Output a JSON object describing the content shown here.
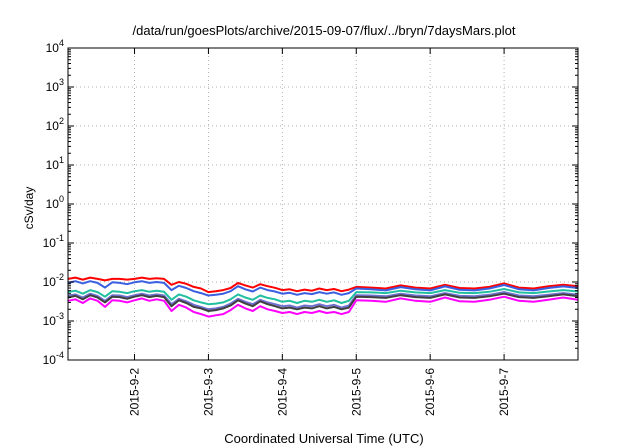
{
  "chart_data": {
    "type": "line",
    "title": "/data/run/goesPlots/archive/2015-09-07/flux/../bryn/7daysMars.plot",
    "xlabel": "Coordinated Universal Time (UTC)",
    "ylabel": "cSv/day",
    "yscale": "log",
    "ylim": [
      0.0001,
      10000
    ],
    "y_ticks": [
      {
        "value": 0.0001,
        "base": "10",
        "exp": "-4"
      },
      {
        "value": 0.001,
        "base": "10",
        "exp": "-3"
      },
      {
        "value": 0.01,
        "base": "10",
        "exp": "-2"
      },
      {
        "value": 0.1,
        "base": "10",
        "exp": "-1"
      },
      {
        "value": 1,
        "base": "10",
        "exp": "0"
      },
      {
        "value": 10,
        "base": "10",
        "exp": "1"
      },
      {
        "value": 100,
        "base": "10",
        "exp": "2"
      },
      {
        "value": 1000,
        "base": "10",
        "exp": "3"
      },
      {
        "value": 10000,
        "base": "10",
        "exp": "4"
      }
    ],
    "xlim": [
      1.1,
      8.0
    ],
    "x_ticks": [
      {
        "label": "2015-9-2",
        "day": 2
      },
      {
        "label": "2015-9-3",
        "day": 3
      },
      {
        "label": "2015-9-4",
        "day": 4
      },
      {
        "label": "2015-9-5",
        "day": 5
      },
      {
        "label": "2015-9-6",
        "day": 6
      },
      {
        "label": "2015-9-7",
        "day": 7
      }
    ],
    "grid": true,
    "x": [
      1.1,
      1.2,
      1.3,
      1.4,
      1.5,
      1.6,
      1.7,
      1.8,
      1.9,
      2.0,
      2.1,
      2.2,
      2.3,
      2.4,
      2.5,
      2.6,
      2.7,
      2.8,
      2.9,
      3.0,
      3.1,
      3.2,
      3.3,
      3.4,
      3.5,
      3.6,
      3.7,
      3.8,
      3.9,
      4.0,
      4.1,
      4.2,
      4.3,
      4.4,
      4.5,
      4.6,
      4.7,
      4.8,
      4.9,
      5.0,
      5.2,
      5.4,
      5.6,
      5.8,
      6.0,
      6.2,
      6.4,
      6.6,
      6.8,
      7.0,
      7.2,
      7.4,
      7.6,
      7.8,
      8.0
    ],
    "series": [
      {
        "color": "#ff0000",
        "values": [
          0.012,
          0.013,
          0.0115,
          0.013,
          0.012,
          0.011,
          0.012,
          0.012,
          0.0115,
          0.012,
          0.013,
          0.012,
          0.0125,
          0.012,
          0.0085,
          0.01,
          0.009,
          0.0075,
          0.0068,
          0.0055,
          0.0058,
          0.0062,
          0.007,
          0.0095,
          0.0082,
          0.0072,
          0.0088,
          0.0078,
          0.0071,
          0.0062,
          0.0065,
          0.0058,
          0.0064,
          0.006,
          0.0068,
          0.0062,
          0.0066,
          0.0058,
          0.0064,
          0.0075,
          0.0072,
          0.0068,
          0.0082,
          0.0072,
          0.0068,
          0.0085,
          0.007,
          0.0068,
          0.0075,
          0.0092,
          0.0072,
          0.0068,
          0.0078,
          0.0085,
          0.0078
        ]
      },
      {
        "color": "#3a5fe0",
        "values": [
          0.0095,
          0.0105,
          0.0092,
          0.0105,
          0.0095,
          0.0072,
          0.0098,
          0.0095,
          0.0088,
          0.0098,
          0.0105,
          0.0095,
          0.01,
          0.0095,
          0.0062,
          0.008,
          0.007,
          0.0058,
          0.0052,
          0.0045,
          0.0047,
          0.005,
          0.0058,
          0.0078,
          0.0065,
          0.0057,
          0.0072,
          0.0062,
          0.0057,
          0.005,
          0.0053,
          0.0047,
          0.0052,
          0.0049,
          0.0055,
          0.005,
          0.0054,
          0.0047,
          0.0052,
          0.0068,
          0.0065,
          0.0061,
          0.0074,
          0.0065,
          0.0061,
          0.0077,
          0.0063,
          0.0061,
          0.0068,
          0.0084,
          0.0065,
          0.0061,
          0.007,
          0.0077,
          0.007
        ]
      },
      {
        "color": "#20c0a0",
        "values": [
          0.0055,
          0.006,
          0.005,
          0.0062,
          0.0055,
          0.0042,
          0.0058,
          0.0056,
          0.0052,
          0.0058,
          0.0062,
          0.0056,
          0.006,
          0.0056,
          0.0035,
          0.0048,
          0.0042,
          0.0034,
          0.003,
          0.0027,
          0.0028,
          0.003,
          0.0036,
          0.0048,
          0.004,
          0.0035,
          0.0045,
          0.0039,
          0.0036,
          0.0031,
          0.0033,
          0.0029,
          0.0033,
          0.0031,
          0.0035,
          0.0031,
          0.0034,
          0.0029,
          0.0033,
          0.0055,
          0.0054,
          0.0052,
          0.006,
          0.0054,
          0.0052,
          0.0062,
          0.0053,
          0.0052,
          0.0056,
          0.0066,
          0.0054,
          0.0052,
          0.0057,
          0.0062,
          0.0057
        ]
      },
      {
        "color": "#7070d0",
        "values": [
          0.0044,
          0.0048,
          0.004,
          0.005,
          0.0044,
          0.0033,
          0.0046,
          0.0045,
          0.0041,
          0.0046,
          0.005,
          0.0045,
          0.0048,
          0.0045,
          0.0027,
          0.0037,
          0.0032,
          0.0026,
          0.0023,
          0.002,
          0.0021,
          0.0023,
          0.0028,
          0.0037,
          0.0031,
          0.0027,
          0.0035,
          0.003,
          0.0027,
          0.0024,
          0.0025,
          0.0022,
          0.0025,
          0.0024,
          0.0027,
          0.0024,
          0.0026,
          0.0022,
          0.0025,
          0.0046,
          0.0045,
          0.0043,
          0.005,
          0.0045,
          0.0043,
          0.0052,
          0.0044,
          0.0043,
          0.0047,
          0.0055,
          0.0045,
          0.0043,
          0.0047,
          0.0052,
          0.0047
        ]
      },
      {
        "color": "#404040",
        "values": [
          0.004,
          0.0044,
          0.0036,
          0.0046,
          0.004,
          0.003,
          0.0042,
          0.0041,
          0.0037,
          0.0042,
          0.0046,
          0.0041,
          0.0044,
          0.0041,
          0.0024,
          0.0034,
          0.0029,
          0.0023,
          0.0021,
          0.0018,
          0.0019,
          0.0021,
          0.0025,
          0.0034,
          0.0028,
          0.0024,
          0.0032,
          0.0027,
          0.0024,
          0.0021,
          0.0022,
          0.002,
          0.0022,
          0.0021,
          0.0024,
          0.0021,
          0.0023,
          0.002,
          0.0022,
          0.0042,
          0.0041,
          0.0039,
          0.0046,
          0.0041,
          0.0039,
          0.0048,
          0.004,
          0.0039,
          0.0043,
          0.005,
          0.0041,
          0.0039,
          0.0043,
          0.0048,
          0.0043
        ]
      },
      {
        "color": "#ff00ff",
        "values": [
          0.0033,
          0.0036,
          0.0029,
          0.0038,
          0.0033,
          0.0023,
          0.0034,
          0.0033,
          0.003,
          0.0034,
          0.0038,
          0.0033,
          0.0036,
          0.0033,
          0.0018,
          0.0026,
          0.0022,
          0.0017,
          0.0015,
          0.0013,
          0.0014,
          0.0015,
          0.0019,
          0.0026,
          0.0021,
          0.0018,
          0.0024,
          0.002,
          0.0018,
          0.0016,
          0.0017,
          0.0015,
          0.0017,
          0.0016,
          0.0018,
          0.0016,
          0.0017,
          0.0015,
          0.0017,
          0.0034,
          0.0033,
          0.0031,
          0.0038,
          0.0033,
          0.0031,
          0.004,
          0.0032,
          0.0031,
          0.0035,
          0.0042,
          0.0033,
          0.0031,
          0.0035,
          0.004,
          0.0035
        ]
      }
    ]
  }
}
